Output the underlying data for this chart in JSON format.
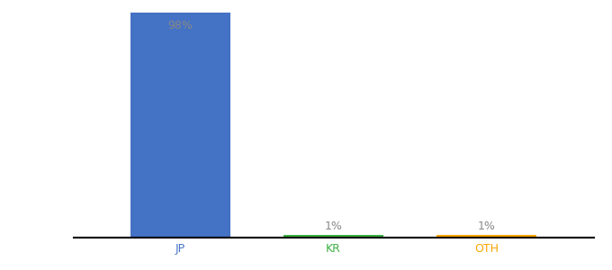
{
  "categories": [
    "JP",
    "KR",
    "OTH"
  ],
  "values": [
    98,
    1,
    1
  ],
  "bar_colors": [
    "#4472C4",
    "#3CB043",
    "#FFA500"
  ],
  "bar_labels": [
    "98%",
    "1%",
    "1%"
  ],
  "ylim": [
    0,
    100
  ],
  "label_color": "#888888",
  "xlabel_colors": [
    "#4472C4",
    "#3CB043",
    "#FFA500"
  ],
  "background_color": "#ffffff",
  "figsize": [
    6.8,
    3.0
  ],
  "dpi": 100,
  "bar_width": 0.65
}
